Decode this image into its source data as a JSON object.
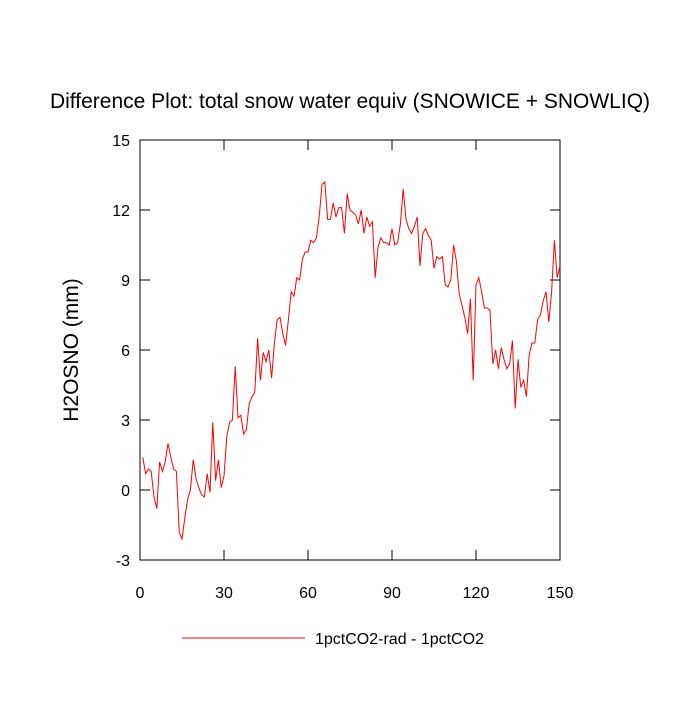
{
  "chart_data": {
    "type": "line",
    "title": "Difference Plot: total snow water equiv (SNOWICE + SNOWLIQ)",
    "y_label": "H2OSNO  (mm)",
    "x": [
      1,
      2,
      3,
      4,
      5,
      6,
      7,
      8,
      9,
      10,
      11,
      12,
      13,
      14,
      15,
      16,
      17,
      18,
      19,
      20,
      21,
      22,
      23,
      24,
      25,
      26,
      27,
      28,
      29,
      30,
      31,
      32,
      33,
      34,
      35,
      36,
      37,
      38,
      39,
      40,
      41,
      42,
      43,
      44,
      45,
      46,
      47,
      48,
      49,
      50,
      51,
      52,
      53,
      54,
      55,
      56,
      57,
      58,
      59,
      60,
      61,
      62,
      63,
      64,
      65,
      66,
      67,
      68,
      69,
      70,
      71,
      72,
      73,
      74,
      75,
      76,
      77,
      78,
      79,
      80,
      81,
      82,
      83,
      84,
      85,
      86,
      87,
      88,
      89,
      90,
      91,
      92,
      93,
      94,
      95,
      96,
      97,
      98,
      99,
      100,
      101,
      102,
      103,
      104,
      105,
      106,
      107,
      108,
      109,
      110,
      111,
      112,
      113,
      114,
      115,
      116,
      117,
      118,
      119,
      120,
      121,
      122,
      123,
      124,
      125,
      126,
      127,
      128,
      129,
      130,
      131,
      132,
      133,
      134,
      135,
      136,
      137,
      138,
      139,
      140,
      141,
      142,
      143,
      144,
      145,
      146,
      147,
      148,
      149,
      150
    ],
    "series": [
      {
        "name": "1pctCO2-rad - 1pctCO2",
        "color": "#ff0000",
        "values": [
          1.4,
          0.7,
          0.9,
          0.8,
          -0.3,
          -0.8,
          1.2,
          0.8,
          1.2,
          2.0,
          1.4,
          0.9,
          0.8,
          -1.8,
          -2.1,
          -1.2,
          -0.4,
          0.0,
          1.3,
          0.5,
          0.1,
          -0.2,
          -0.3,
          0.7,
          -0.1,
          2.9,
          0.4,
          1.3,
          0.1,
          0.6,
          2.3,
          2.9,
          3.0,
          5.3,
          3.1,
          3.2,
          2.4,
          2.6,
          3.7,
          4.0,
          4.2,
          6.5,
          4.7,
          5.9,
          5.5,
          6.0,
          4.8,
          6.3,
          7.3,
          7.4,
          6.7,
          6.2,
          7.3,
          8.5,
          8.3,
          9.1,
          9.0,
          9.9,
          10.2,
          10.2,
          10.7,
          10.6,
          10.8,
          11.7,
          13.1,
          13.2,
          11.6,
          11.6,
          12.3,
          11.7,
          12.1,
          12.1,
          11.0,
          12.7,
          12.0,
          11.9,
          11.8,
          11.4,
          12.0,
          11.0,
          11.7,
          11.3,
          11.5,
          9.1,
          10.4,
          10.8,
          10.6,
          10.6,
          10.5,
          11.2,
          10.5,
          10.6,
          11.4,
          12.9,
          11.6,
          11.2,
          11.0,
          11.3,
          11.7,
          9.6,
          11.0,
          11.2,
          10.9,
          10.7,
          9.5,
          10.0,
          9.9,
          10.0,
          8.8,
          8.7,
          9.0,
          10.5,
          9.8,
          8.4,
          7.9,
          7.4,
          6.7,
          8.2,
          4.7,
          8.8,
          9.1,
          8.5,
          7.8,
          7.8,
          7.7,
          5.4,
          6.0,
          5.2,
          6.1,
          5.6,
          5.2,
          5.4,
          6.4,
          3.5,
          5.6,
          4.4,
          4.7,
          4.0,
          5.8,
          6.3,
          6.3,
          7.3,
          7.5,
          8.1,
          8.5,
          7.2,
          8.5,
          10.7,
          9.1,
          9.6
        ]
      }
    ],
    "xlim": [
      0,
      150
    ],
    "xticks": [
      0,
      30,
      60,
      90,
      120,
      150
    ],
    "ylim": [
      -3,
      15
    ],
    "yticks": [
      -3,
      0,
      3,
      6,
      9,
      12,
      15
    ]
  }
}
